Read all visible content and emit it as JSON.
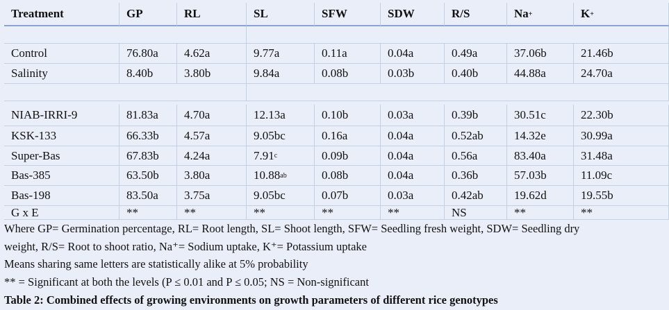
{
  "table": {
    "header": [
      "Treatment",
      "GP",
      "RL",
      "SL",
      "SFW",
      "SDW",
      "R/S",
      {
        "text": "Na",
        "sup": "+"
      },
      {
        "text": "K",
        "sup": "+"
      }
    ],
    "sections": [
      {
        "rows": [
          [
            "Control",
            "76.80a",
            "4.62a",
            "9.77a",
            "0.11a",
            "0.04a",
            "0.49a",
            "37.06b",
            "21.46b"
          ],
          [
            "Salinity",
            "8.40b",
            "3.80b",
            "9.84a",
            "0.08b",
            "0.03b",
            "0.40b",
            "44.88a",
            "24.70a"
          ]
        ]
      },
      {
        "rows": [
          [
            "NIAB-IRRI-9",
            "81.83a",
            "4.70a",
            "12.13a",
            "0.10b",
            "0.03a",
            "0.39b",
            "30.51c",
            "22.30b"
          ],
          [
            "KSK-133",
            "66.33b",
            "4.57a",
            "9.05bc",
            "0.16a",
            "0.04a",
            "0.52ab",
            "14.32e",
            "30.99a"
          ],
          [
            "Super-Bas",
            "67.83b",
            "4.24a",
            {
              "text": "7.91",
              "sup": "c"
            },
            "0.09b",
            "0.04a",
            "0.56a",
            "83.40a",
            "31.48a"
          ],
          [
            "Bas-385",
            "63.50b",
            "3.80a",
            {
              "text": "10.88",
              "sup": "ab"
            },
            "0.08b",
            "0.04a",
            "0.36b",
            "57.03b",
            "11.09c"
          ],
          [
            "Bas-198",
            "83.50a",
            "3.75a",
            "9.05bc",
            "0.07b",
            "0.03a",
            "0.42ab",
            "19.62d",
            "19.55b"
          ],
          [
            "G x E",
            "**",
            "**",
            "**",
            "**",
            "**",
            "NS",
            "**",
            "**"
          ]
        ]
      }
    ],
    "notes": [
      "Where GP= Germination percentage, RL= Root length, SL= Shoot length, SFW= Seedling fresh weight, SDW= Seedling dry",
      "weight, R/S= Root to shoot ratio, Na⁺= Sodium uptake, K⁺= Potassium uptake",
      "Means sharing same letters are statistically alike at 5% probability",
      "** = Significant at both the levels (P ≤ 0.01 and P ≤ 0.05; NS = Non-significant"
    ],
    "caption": "Table 2: Combined effects of growing environments on growth parameters of different rice genotypes"
  }
}
